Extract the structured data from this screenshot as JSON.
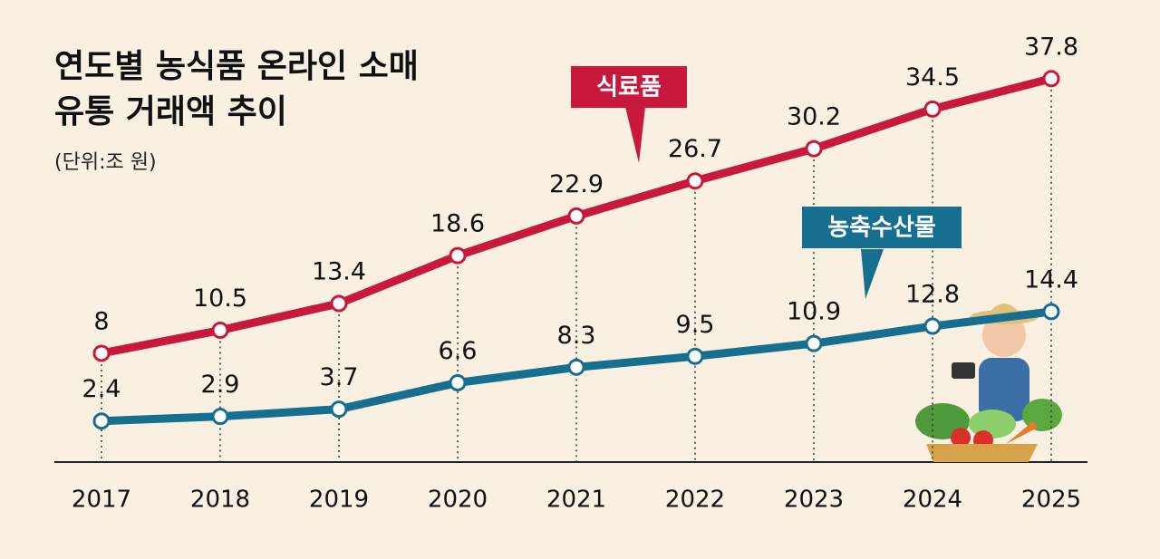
{
  "chart_data": {
    "type": "line",
    "title": [
      "연도별 농식품 온라인 소매",
      "유통 거래액 추이"
    ],
    "subtitle": "(단위:조 원)",
    "categories": [
      "2017",
      "2018",
      "2019",
      "2020",
      "2021",
      "2022",
      "2023",
      "2024",
      "2025"
    ],
    "series": [
      {
        "name": "식료품",
        "color": "#c8193c",
        "values": [
          8,
          10.5,
          13.4,
          18.6,
          22.9,
          26.7,
          30.2,
          34.5,
          37.8
        ]
      },
      {
        "name": "농축수산물",
        "color": "#176f8f",
        "axis": "y2",
        "values": [
          2.4,
          2.9,
          3.7,
          6.6,
          8.3,
          9.5,
          10.9,
          12.8,
          14.4
        ]
      }
    ],
    "ylim": [
      -3.8,
      42.4
    ],
    "y2lim": [
      -2.1,
      44.6
    ]
  }
}
